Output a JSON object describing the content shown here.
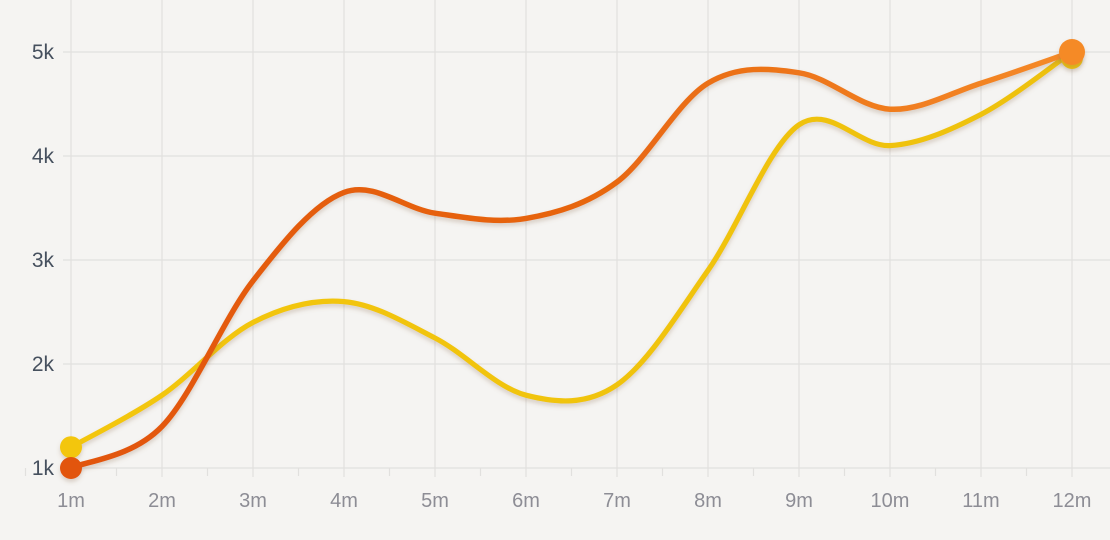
{
  "chart_data": {
    "type": "line",
    "title": "",
    "grid": true,
    "legend": false,
    "x_axis": {
      "tick_labels": [
        "1m",
        "2m",
        "3m",
        "4m",
        "5m",
        "6m",
        "7m",
        "8m",
        "9m",
        "10m",
        "11m",
        "12m"
      ],
      "values": [
        1,
        2,
        3,
        4,
        5,
        6,
        7,
        8,
        9,
        10,
        11,
        12
      ],
      "minor_ticks_every": 0.5
    },
    "y_axis": {
      "tick_labels": [
        "1k",
        "2k",
        "3k",
        "4k",
        "5k"
      ],
      "values": [
        1000,
        2000,
        3000,
        4000,
        5000
      ],
      "range": [
        1000,
        5000
      ]
    },
    "series": [
      {
        "name": "yellow-series",
        "color": "#f1c40e",
        "gradient": [
          "#f3c60b",
          "#eec111"
        ],
        "values": [
          1200,
          1700,
          2400,
          2600,
          2250,
          1700,
          1800,
          2900,
          4300,
          4100,
          4400,
          5000
        ],
        "endpoint_dots": true
      },
      {
        "name": "orange-series",
        "color": "#ec6a12",
        "gradient": [
          "#e25508",
          "#e7650f",
          "#f58a28"
        ],
        "values": [
          1000,
          1400,
          2800,
          3650,
          3450,
          3400,
          3750,
          4700,
          4800,
          4450,
          4700,
          5000
        ],
        "endpoint_dots": true
      }
    ]
  },
  "style": {
    "background": "#f5f4f2",
    "grid_color": "#e1e0de",
    "y_label_color": "#46505e",
    "x_label_color": "#8d8d95"
  }
}
